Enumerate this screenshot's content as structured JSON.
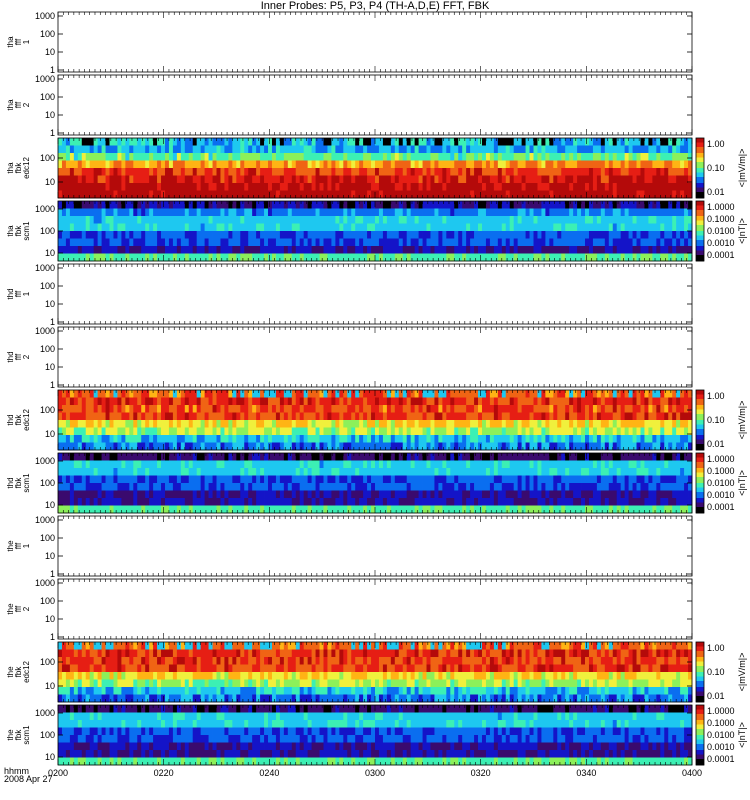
{
  "title": "Inner Probes: P5, P3, P4 (TH-A,D,E) FFT, FBK",
  "time_axis": {
    "label": "hhmm",
    "date": "2008 Apr 27",
    "ticks": [
      "0200",
      "0220",
      "0240",
      "0300",
      "0320",
      "0340",
      "0400"
    ]
  },
  "colors": {
    "colormap": [
      "#000000",
      "#3a0a6e",
      "#1414c8",
      "#0a6ef0",
      "#1ec8f0",
      "#3cf0b4",
      "#8cf05a",
      "#f0f03c",
      "#ffb414",
      "#f06414",
      "#e61e14",
      "#b40a0a"
    ]
  },
  "chart_data": [
    {
      "type": "heatmap",
      "panel_label": [
        "tha",
        "fff",
        "1"
      ],
      "y_ticks": [
        "1000",
        "100",
        "10",
        "1"
      ],
      "ylim": [
        1,
        2000
      ],
      "y_scale": "log",
      "has_data": false
    },
    {
      "type": "heatmap",
      "panel_label": [
        "tha",
        "fff",
        "2"
      ],
      "y_ticks": [
        "1000",
        "100",
        "10",
        "1"
      ],
      "ylim": [
        1,
        2000
      ],
      "y_scale": "log",
      "has_data": false
    },
    {
      "type": "heatmap",
      "panel_label": [
        "tha",
        "fbk",
        "edc12"
      ],
      "y_ticks": [
        "100",
        "10"
      ],
      "y_scale": "log",
      "has_data": true,
      "colorbar": {
        "ticks": [
          "1.00",
          "0.10",
          "0.01"
        ],
        "label": "<|mV/m|>",
        "range": [
          0.005,
          2
        ]
      },
      "band_levels": [
        0.05,
        0.04,
        0.1,
        0.4,
        0.8,
        1.2,
        1.6,
        1.9
      ]
    },
    {
      "type": "heatmap",
      "panel_label": [
        "tha",
        "fbk",
        "scm1"
      ],
      "y_ticks": [
        "1000",
        "100",
        "10"
      ],
      "y_scale": "log",
      "has_data": true,
      "colorbar": {
        "ticks": [
          "1.0000",
          "0.1000",
          "0.0100",
          "0.0010",
          "0.0001"
        ],
        "label": "<|nT|>",
        "range": [
          5e-05,
          2
        ]
      },
      "band_levels": [
        0.0003,
        0.0012,
        0.003,
        0.003,
        0.0008,
        0.0008,
        0.0003,
        0.008
      ]
    },
    {
      "type": "heatmap",
      "panel_label": [
        "thd",
        "fff",
        "1"
      ],
      "y_ticks": [
        "1000",
        "100",
        "10",
        "1"
      ],
      "ylim": [
        1,
        2000
      ],
      "y_scale": "log",
      "has_data": false
    },
    {
      "type": "heatmap",
      "panel_label": [
        "thd",
        "fff",
        "2"
      ],
      "y_ticks": [
        "1000",
        "100",
        "10",
        "1"
      ],
      "ylim": [
        1,
        2000
      ],
      "y_scale": "log",
      "has_data": false
    },
    {
      "type": "heatmap",
      "panel_label": [
        "thd",
        "fbk",
        "edc12"
      ],
      "y_ticks": [
        "100",
        "10"
      ],
      "y_scale": "log",
      "has_data": true,
      "colorbar": {
        "ticks": [
          "1.00",
          "0.10",
          "0.01"
        ],
        "label": "<|mV/m|>",
        "range": [
          0.005,
          2
        ]
      },
      "band_levels": [
        0.6,
        0.9,
        0.7,
        0.8,
        0.25,
        0.15,
        0.05,
        0.03
      ]
    },
    {
      "type": "heatmap",
      "panel_label": [
        "thd",
        "fbk",
        "scm1"
      ],
      "y_ticks": [
        "1000",
        "100",
        "10"
      ],
      "y_scale": "log",
      "has_data": true,
      "colorbar": {
        "ticks": [
          "1.0000",
          "0.1000",
          "0.0100",
          "0.0010",
          "0.0001"
        ],
        "label": "<|nT|>",
        "range": [
          5e-05,
          2
        ]
      },
      "band_levels": [
        0.0002,
        0.003,
        0.003,
        0.0008,
        0.0008,
        0.0003,
        0.0003,
        0.008
      ]
    },
    {
      "type": "heatmap",
      "panel_label": [
        "the",
        "fff",
        "1"
      ],
      "y_ticks": [
        "1000",
        "100",
        "10",
        "1"
      ],
      "ylim": [
        1,
        2000
      ],
      "y_scale": "log",
      "has_data": false
    },
    {
      "type": "heatmap",
      "panel_label": [
        "the",
        "fff",
        "2"
      ],
      "y_ticks": [
        "1000",
        "100",
        "10",
        "1"
      ],
      "ylim": [
        1,
        2000
      ],
      "y_scale": "log",
      "has_data": false
    },
    {
      "type": "heatmap",
      "panel_label": [
        "the",
        "fbk",
        "edc12"
      ],
      "y_ticks": [
        "100",
        "10"
      ],
      "y_scale": "log",
      "has_data": true,
      "colorbar": {
        "ticks": [
          "1.00",
          "0.10",
          "0.01"
        ],
        "label": "<|mV/m|>",
        "range": [
          0.005,
          2
        ]
      },
      "band_levels": [
        0.6,
        0.9,
        0.8,
        0.8,
        0.25,
        0.15,
        0.05,
        0.03
      ]
    },
    {
      "type": "heatmap",
      "panel_label": [
        "the",
        "fbk",
        "scm1"
      ],
      "y_ticks": [
        "1000",
        "100",
        "10"
      ],
      "y_scale": "log",
      "has_data": true,
      "colorbar": {
        "ticks": [
          "1.0000",
          "0.1000",
          "0.0100",
          "0.0010",
          "0.0001"
        ],
        "label": "<|nT|>",
        "range": [
          5e-05,
          2
        ]
      },
      "band_levels": [
        0.0002,
        0.003,
        0.003,
        0.0008,
        0.0008,
        0.0003,
        0.0003,
        0.008
      ]
    }
  ]
}
